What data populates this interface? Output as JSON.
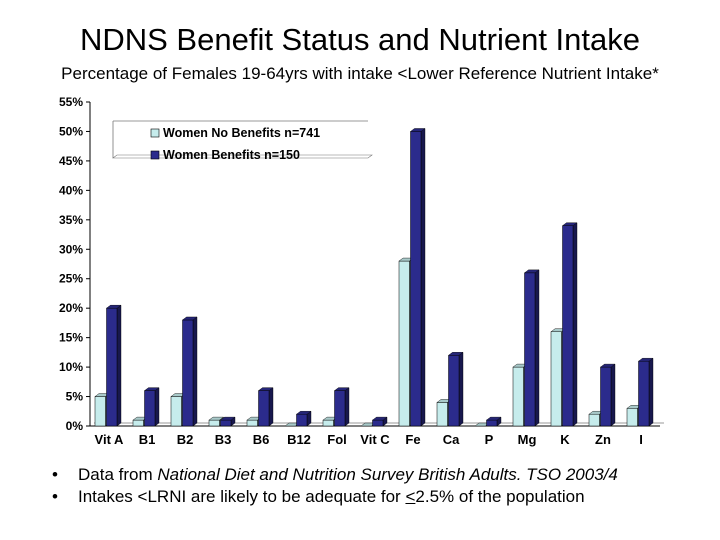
{
  "header": {
    "title": "NDNS Benefit Status and Nutrient Intake",
    "subtitle": "Percentage of Females 19-64yrs with intake <Lower Reference Nutrient Intake*"
  },
  "chart_data": {
    "type": "bar",
    "categories": [
      "Vit A",
      "B1",
      "B2",
      "B3",
      "B6",
      "B12",
      "Fol",
      "Vit C",
      "Fe",
      "Ca",
      "P",
      "Mg",
      "K",
      "Zn",
      "I"
    ],
    "series": [
      {
        "name": "Women No Benefits n=741",
        "color": "#c6ecec",
        "values": [
          5,
          1,
          5,
          1,
          1,
          0,
          1,
          0,
          28,
          4,
          0,
          10,
          16,
          2,
          3
        ]
      },
      {
        "name": "Women Benefits n=150",
        "color": "#2b2b8c",
        "values": [
          20,
          6,
          18,
          1,
          6,
          2,
          6,
          1,
          50,
          12,
          1,
          26,
          34,
          10,
          11
        ]
      }
    ],
    "yticks": [
      "0%",
      "5%",
      "10%",
      "15%",
      "20%",
      "25%",
      "30%",
      "35%",
      "40%",
      "45%",
      "50%",
      "55%"
    ],
    "ylim": [
      0,
      55
    ],
    "grid": false,
    "legend": "top-left",
    "style": "3d"
  },
  "notes": {
    "bullet": "•",
    "line1_prefix": "Data from ",
    "line1_italic": "National Diet and Nutrition Survey British Adults. TSO 2003/4",
    "line2_prefix": "Intakes <LRNI are likely to be adequate for ",
    "line2_underlined": "<",
    "line2_suffix": "2.5% of the population"
  }
}
